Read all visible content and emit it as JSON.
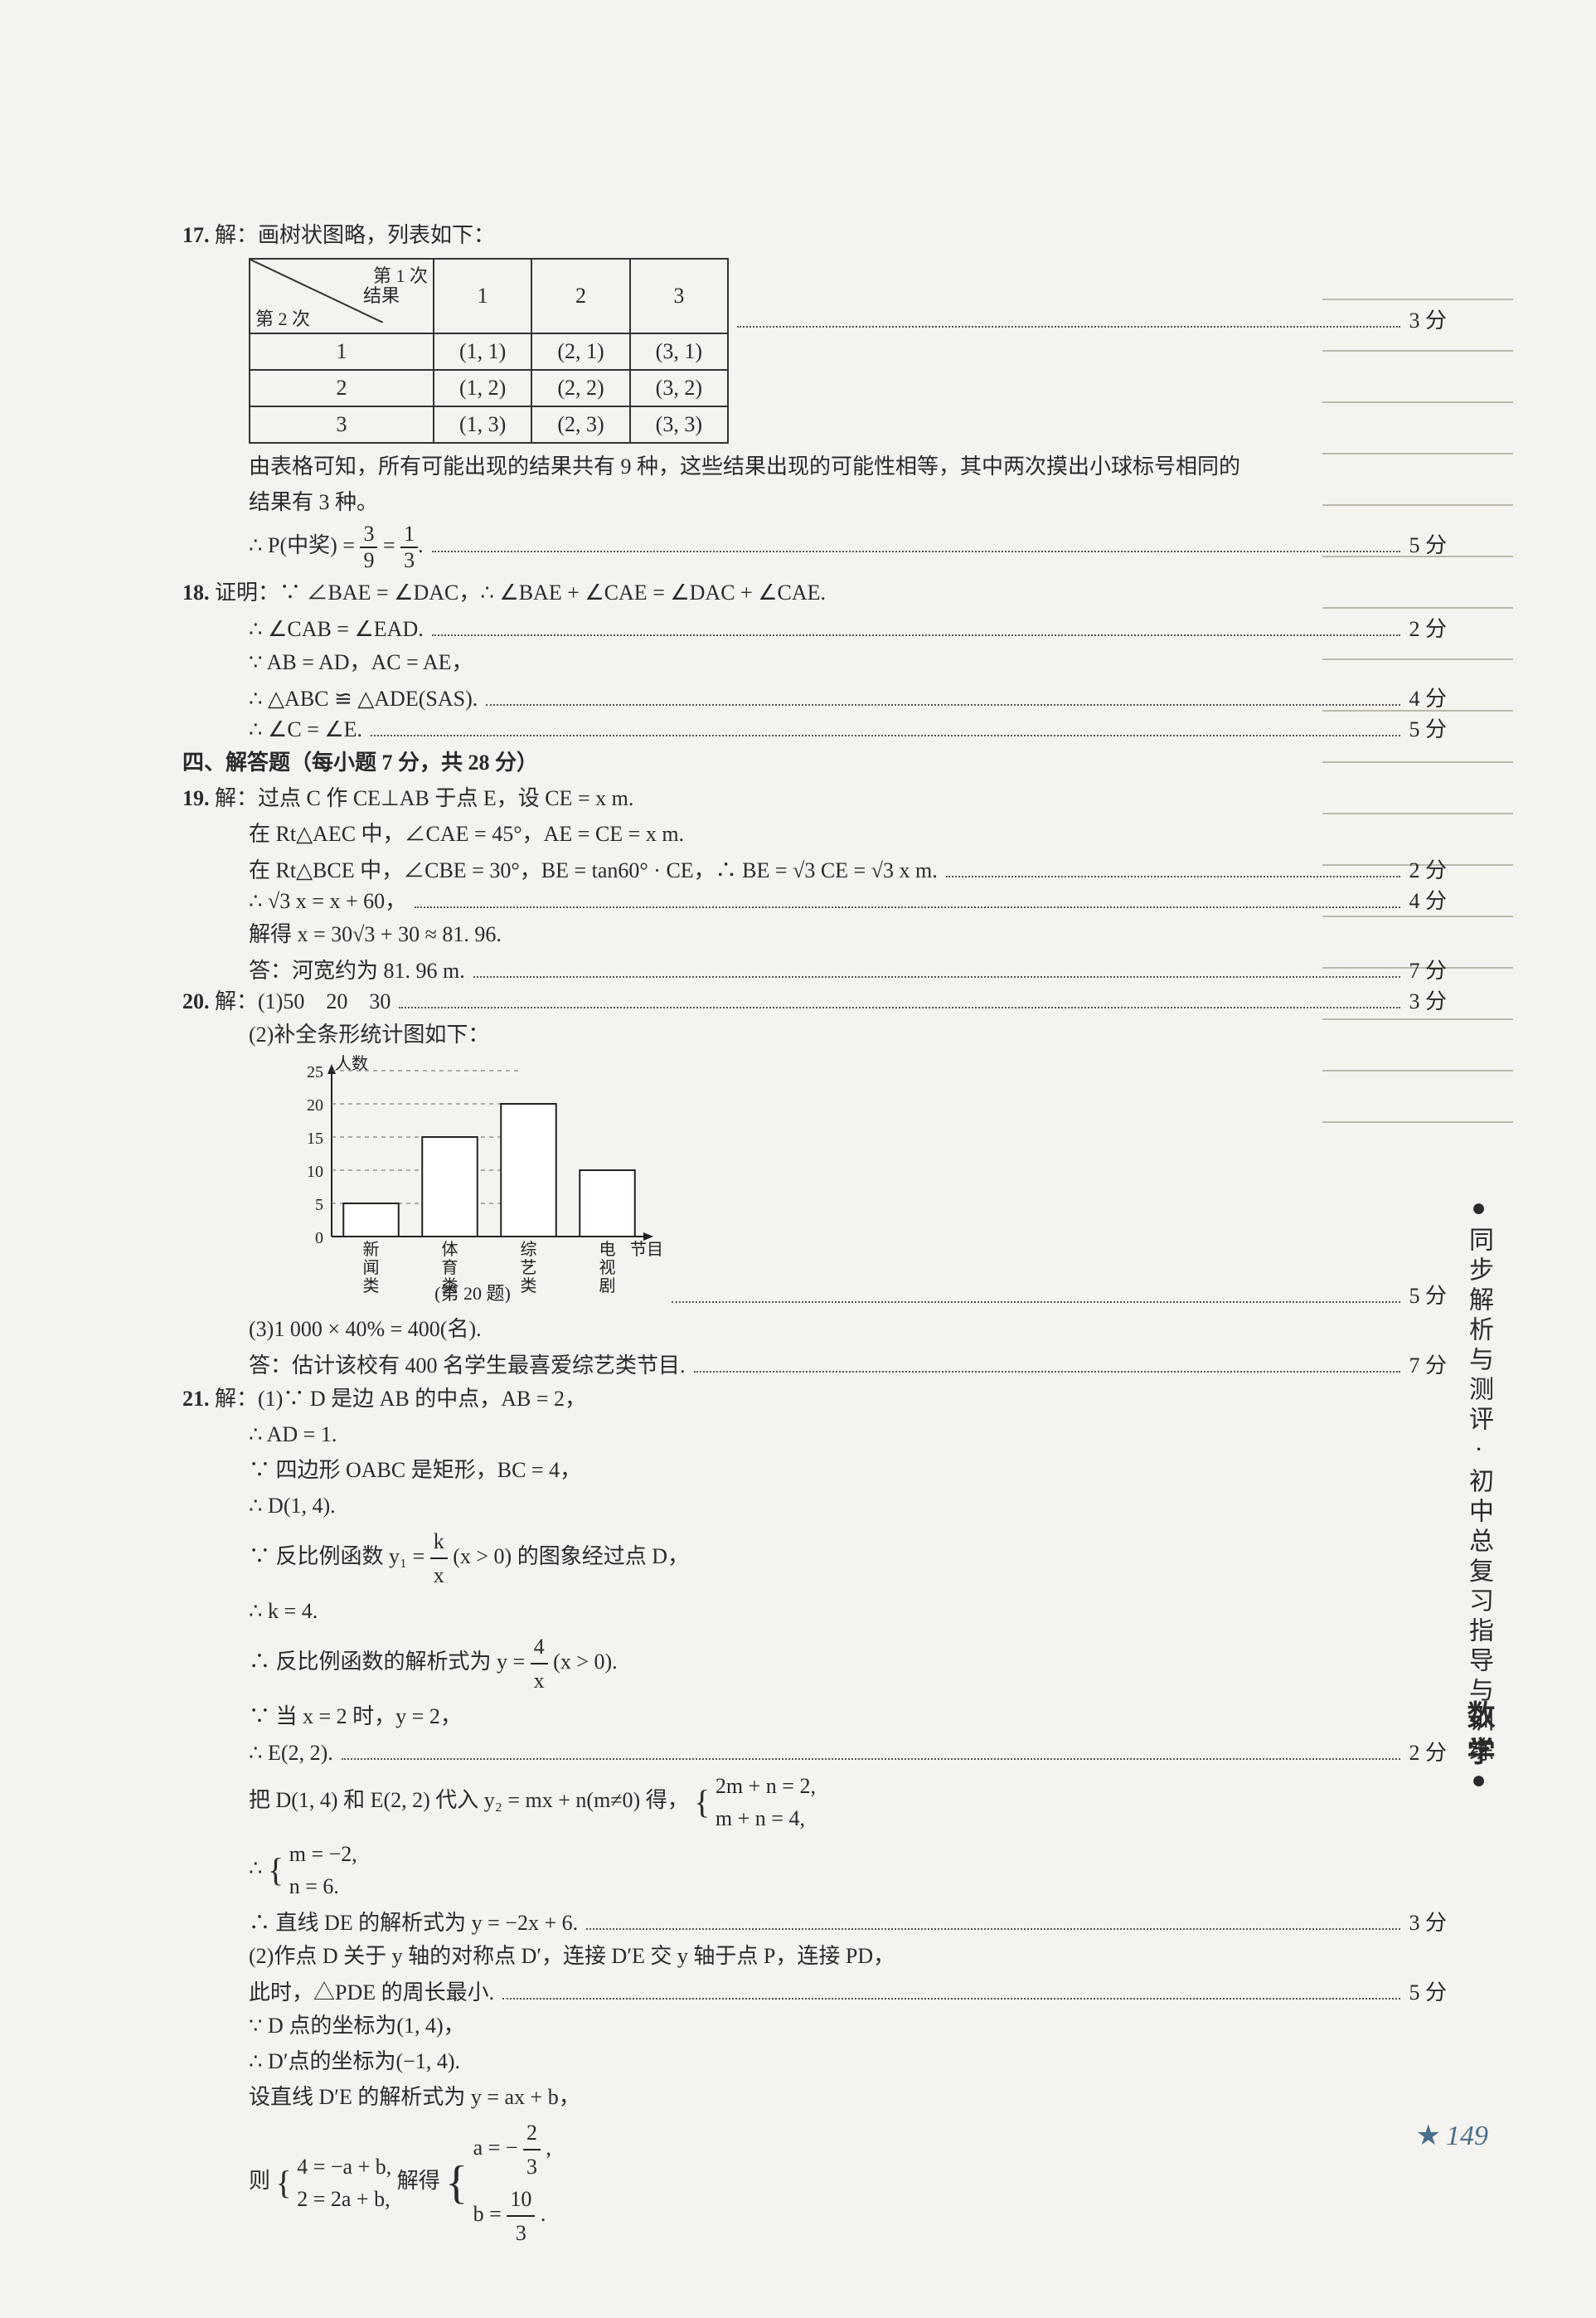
{
  "q17": {
    "num": "17.",
    "intro": "解：画树状图略，列表如下：",
    "table": {
      "col_header_top": "第 1 次",
      "col_header_bottom": "结果",
      "row_header": "第 2 次",
      "cols": [
        "1",
        "2",
        "3"
      ],
      "rows": [
        {
          "h": "1",
          "c": [
            "(1, 1)",
            "(2, 1)",
            "(3, 1)"
          ]
        },
        {
          "h": "2",
          "c": [
            "(1, 2)",
            "(2, 2)",
            "(3, 2)"
          ]
        },
        {
          "h": "3",
          "c": [
            "(1, 3)",
            "(2, 3)",
            "(3, 3)"
          ]
        }
      ]
    },
    "score_table": "3 分",
    "explain1": "由表格可知，所有可能出现的结果共有 9 种，这些结果出现的可能性相等，其中两次摸出小球标号相同的",
    "explain2": "结果有 3 种。",
    "prob_prefix": "∴ P(中奖) = ",
    "frac1_n": "3",
    "frac1_d": "9",
    "eq": " = ",
    "frac2_n": "1",
    "frac2_d": "3",
    "score_prob": "5 分"
  },
  "q18": {
    "num": "18.",
    "l1": "证明：∵ ∠BAE = ∠DAC，∴ ∠BAE + ∠CAE = ∠DAC + ∠CAE.",
    "l2": "∴ ∠CAB = ∠EAD.",
    "score_l2": "2 分",
    "l3": "∵ AB = AD，AC = AE，",
    "l4": "∴ △ABC ≌ △ADE(SAS).",
    "score_l4": "4 分",
    "l5": "∴ ∠C = ∠E.",
    "score_l5": "5 分"
  },
  "section4": "四、解答题（每小题 7 分，共 28 分）",
  "q19": {
    "num": "19.",
    "l1": "解：过点 C 作 CE⊥AB 于点 E，设 CE = x m.",
    "l2": "在 Rt△AEC 中，∠CAE = 45°，AE = CE = x m.",
    "l3": "在 Rt△BCE 中，∠CBE = 30°，BE = tan60° · CE，∴ BE = √3 CE = √3 x m.",
    "score_l3": "2 分",
    "l4": "∴ √3 x = x + 60，",
    "score_l4": "4 分",
    "l5": "解得 x = 30√3 + 30 ≈ 81. 96.",
    "l6": "答：河宽约为 81. 96 m.",
    "score_l6": "7 分"
  },
  "q20": {
    "num": "20.",
    "l1": "解：(1)50　20　30",
    "score_l1": "3 分",
    "l2": "(2)补全条形统计图如下：",
    "chart": {
      "type": "bar",
      "ylabel": "人数",
      "xlabel": "节目类别",
      "ylim": [
        0,
        25
      ],
      "ytick_step": 5,
      "yticks": [
        0,
        5,
        10,
        15,
        20,
        25
      ],
      "categories": [
        "新闻类",
        "体育类",
        "综艺类",
        "电视剧"
      ],
      "values": [
        5,
        15,
        20,
        10
      ],
      "bar_color": "#ffffff",
      "bar_border": "#222222",
      "grid_color": "#666666",
      "bar_width": 0.7,
      "background_color": "#f5f3ef",
      "caption": "(第 20 题)"
    },
    "score_chart": "5 分",
    "l3": "(3)1 000 × 40% = 400(名).",
    "l4": "答：估计该校有 400 名学生最喜爱综艺类节目.",
    "score_l4": "7 分"
  },
  "q21": {
    "num": "21.",
    "l1": "解：(1)∵ D 是边 AB 的中点，AB = 2，",
    "l2": "∴ AD = 1.",
    "l3": "∵ 四边形 OABC 是矩形，BC = 4，",
    "l4": "∴ D(1, 4).",
    "l5a": "∵ 反比例函数 y₁ = ",
    "l5_frac_n": "k",
    "l5_frac_d": "x",
    "l5b": " (x > 0) 的图象经过点 D，",
    "l6": "∴ k = 4.",
    "l7a": "∴ 反比例函数的解析式为 y = ",
    "l7_frac_n": "4",
    "l7_frac_d": "x",
    "l7b": " (x > 0).",
    "l8": "∵ 当 x = 2 时，y = 2，",
    "l9": "∴ E(2, 2).",
    "score_l9": "2 分",
    "l10a": "把 D(1, 4) 和 E(2, 2) 代入 y₂ = mx + n(m≠0) 得，",
    "l10_sys1": "2m + n = 2,",
    "l10_sys2": "m + n = 4,",
    "l11a": "∴ ",
    "l11_sys1": "m = −2,",
    "l11_sys2": "n = 6.",
    "l12": "∴ 直线 DE 的解析式为 y = −2x + 6.",
    "score_l12": "3 分",
    "l13": "(2)作点 D 关于 y 轴的对称点 D′，连接 D′E 交 y 轴于点 P，连接 PD，",
    "l14": "此时，△PDE 的周长最小.",
    "score_l14": "5 分",
    "l15": "∵ D 点的坐标为(1, 4)，",
    "l16": "∴ D′点的坐标为(−1, 4).",
    "l17": "设直线 D′E 的解析式为 y = ax + b，",
    "l18a": "则",
    "l18_sys1": "4 = −a + b,",
    "l18_sys2": "2 = 2a + b,",
    "l18b": "解得",
    "l18_sol1a": "a = −",
    "l18_sol1_n": "2",
    "l18_sol1_d": "3",
    "l18_sol1b": ",",
    "l18_sol2a": "b = ",
    "l18_sol2_n": "10",
    "l18_sol2_d": "3",
    "l18_sol2b": "."
  },
  "sidebar": "●同步解析与测评·初中总复习指导与训练●",
  "sidebar2": "数学",
  "pagenum": "149"
}
